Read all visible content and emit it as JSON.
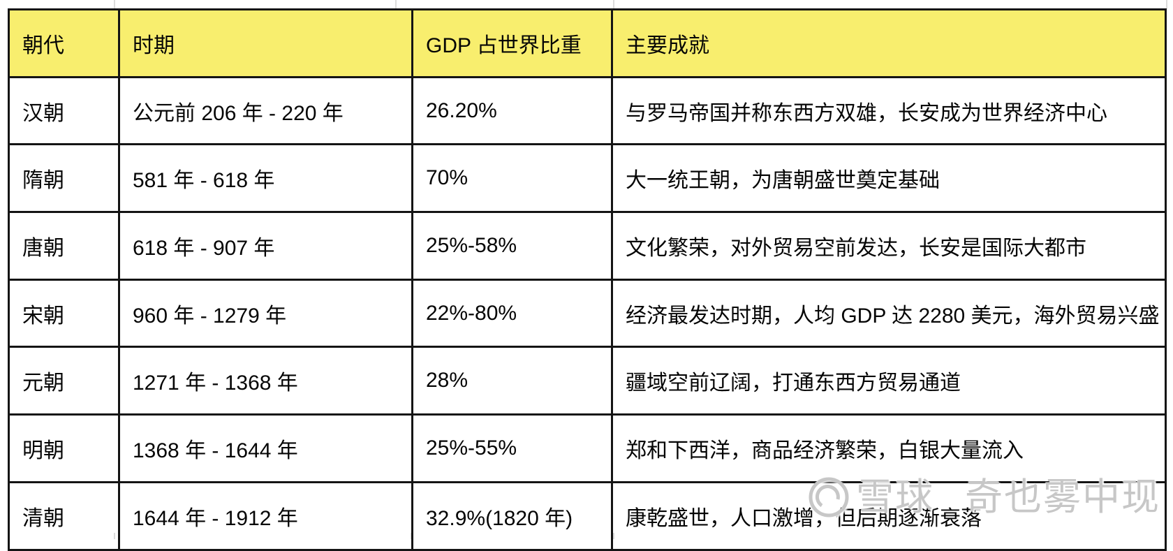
{
  "colors": {
    "header_bg": "#F8EE6E",
    "table_border": "#141414",
    "gridline": "#DCDCDC",
    "watermark_gray": "#C7C7C7"
  },
  "table": {
    "columns": [
      {
        "key": "dynasty",
        "label": "朝代"
      },
      {
        "key": "period",
        "label": "时期"
      },
      {
        "key": "gdp",
        "label": "GDP 占世界比重"
      },
      {
        "key": "achievements",
        "label": "主要成就"
      }
    ],
    "rows": [
      {
        "dynasty": "汉朝",
        "period": "公元前 206 年 - 220 年",
        "gdp": "26.20%",
        "achievements": "与罗马帝国并称东西方双雄，长安成为世界经济中心"
      },
      {
        "dynasty": "隋朝",
        "period": "581 年 - 618 年",
        "gdp": "70%",
        "achievements": "大一统王朝，为唐朝盛世奠定基础"
      },
      {
        "dynasty": "唐朝",
        "period": "618 年 - 907 年",
        "gdp": "25%-58%",
        "achievements": "文化繁荣，对外贸易空前发达，长安是国际大都市"
      },
      {
        "dynasty": "宋朝",
        "period": "960 年 - 1279 年",
        "gdp": "22%-80%",
        "achievements": "经济最发达时期，人均 GDP 达 2280 美元，海外贸易兴盛"
      },
      {
        "dynasty": "元朝",
        "period": "1271 年 - 1368 年",
        "gdp": "28%",
        "achievements": "疆域空前辽阔，打通东西方贸易通道"
      },
      {
        "dynasty": "明朝",
        "period": "1368 年 - 1644 年",
        "gdp": "25%-55%",
        "achievements": "郑和下西洋，商品经济繁荣，白银大量流入"
      },
      {
        "dynasty": "清朝",
        "period": "1644 年 - 1912 年",
        "gdp": "32.9%(1820 年)",
        "achievements": "康乾盛世，人口激增，但后期逐渐衰落"
      }
    ]
  },
  "watermark": {
    "logo": "xueqiu-snowball-logo",
    "brand": "雪球",
    "username": "奇也雾中现"
  }
}
